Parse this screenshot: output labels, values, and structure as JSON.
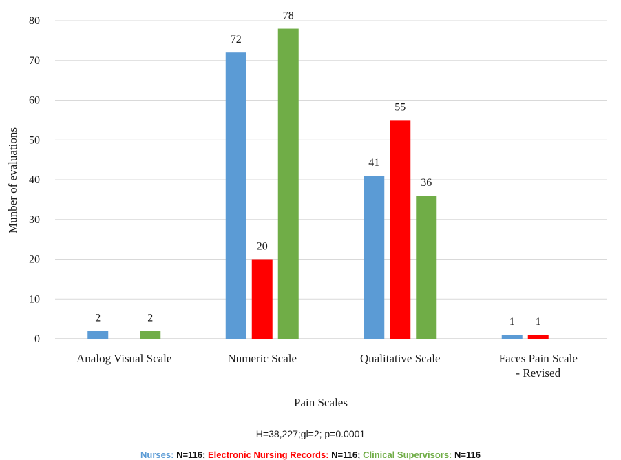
{
  "chart_data": {
    "type": "bar",
    "categories": [
      "Analog Visual Scale",
      "Numeric Scale",
      "Qualitative Scale",
      "Faces Pain Scale - Revised"
    ],
    "category_lines": [
      [
        "Analog Visual Scale"
      ],
      [
        "Numeric Scale"
      ],
      [
        "Qualitative Scale"
      ],
      [
        "Faces Pain Scale",
        "- Revised"
      ]
    ],
    "series": [
      {
        "name": "Nurses",
        "color": "#5b9bd5",
        "values": [
          2,
          72,
          41,
          1
        ],
        "labels": [
          "2",
          "72",
          "41",
          "1"
        ]
      },
      {
        "name": "Electronic Nursing Records",
        "color": "#ff0000",
        "values": [
          null,
          20,
          55,
          1
        ],
        "labels": [
          "",
          "20",
          "55",
          "1"
        ]
      },
      {
        "name": "Clinical Supervisors",
        "color": "#70ad47",
        "values": [
          2,
          78,
          36,
          null
        ],
        "labels": [
          "2",
          "78",
          "36",
          ""
        ]
      }
    ],
    "xlabel": "Pain Scales",
    "ylabel": "Munber of evaluations",
    "ylim": [
      0,
      80
    ],
    "yticks": [
      "0",
      "10",
      "20",
      "30",
      "40",
      "50",
      "60",
      "70",
      "80"
    ],
    "grid": true,
    "legend_position": "bottom",
    "stats_note": "H=38,227;gl=2; p=0.0001",
    "legend_entries": [
      {
        "label": "Nurses:",
        "n": " N=116;",
        "color": "#5b9bd5"
      },
      {
        "label": "Electronic Nursing Records:",
        "n": " N=116;",
        "color": "#ff0000"
      },
      {
        "label": "Clinical Supervisors:",
        "n": " N=116",
        "color": "#70ad47"
      }
    ]
  }
}
